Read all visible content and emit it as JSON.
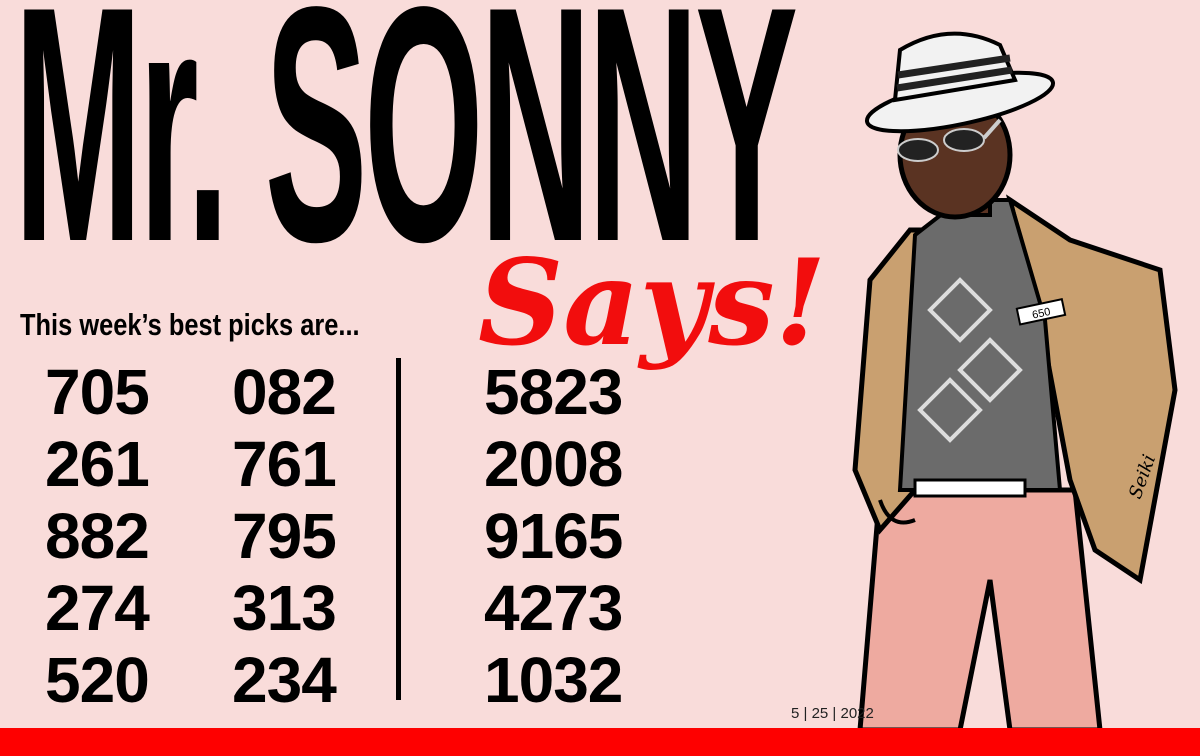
{
  "title": "Mr. SONNY",
  "title_script": "Says!",
  "subtitle": "This week’s best picks are...",
  "picks": {
    "column1": [
      "705",
      "261",
      "882",
      "274",
      "520"
    ],
    "column2": [
      "082",
      "761",
      "795",
      "313",
      "234"
    ],
    "column3": [
      "5823",
      "2008",
      "9165",
      "4273",
      "1032"
    ]
  },
  "pocket_tag": "650",
  "signature": "Seiki",
  "date": "5 | 25 | 2022",
  "colors": {
    "background": "#f9dcda",
    "accent_red": "#fe0000",
    "script_red": "#f20d0d",
    "jacket": "#c9a070",
    "pants": "#eeaaa0"
  }
}
